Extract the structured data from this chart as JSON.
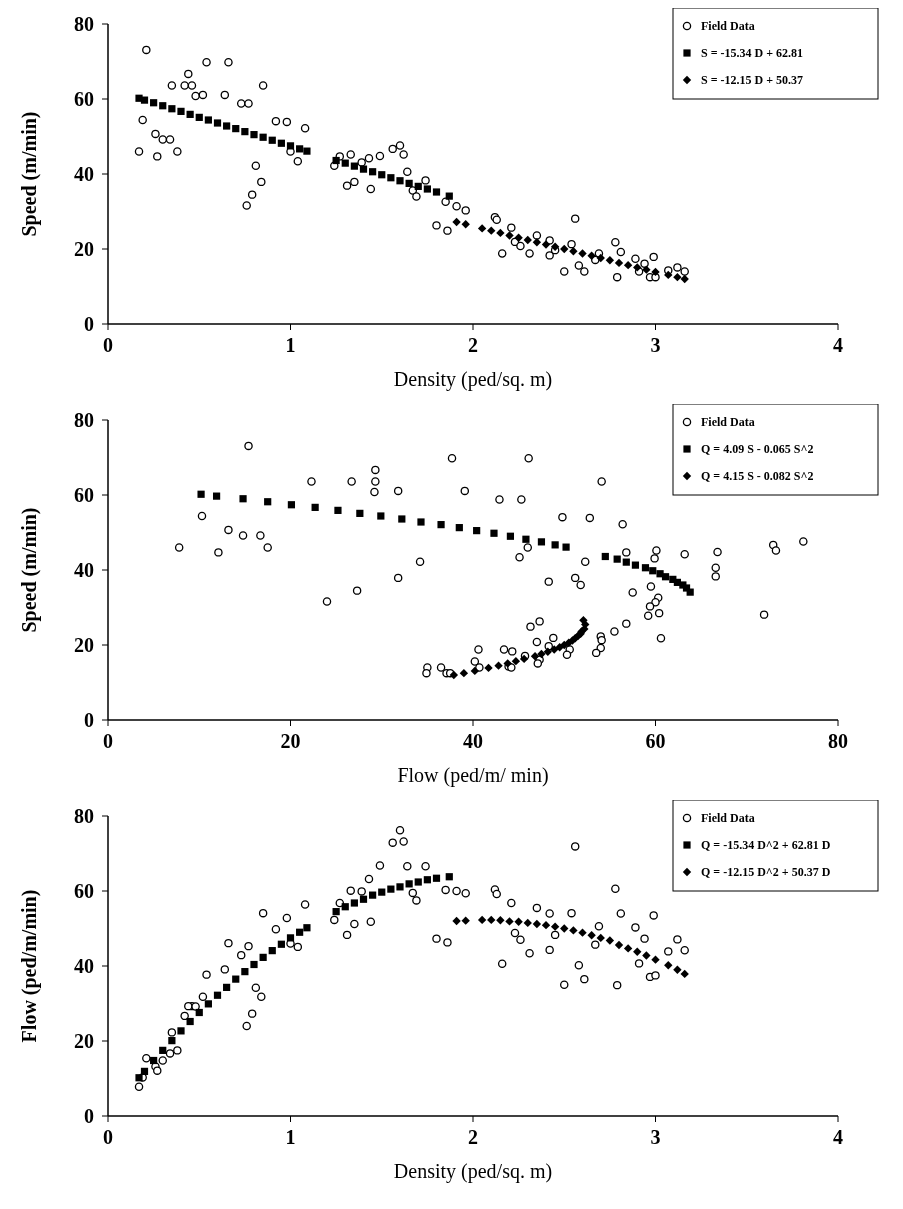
{
  "chart_data": [
    {
      "type": "scatter",
      "xlabel": "Density (ped/sq. m)",
      "ylabel": "Speed (m/min)",
      "xlim": [
        0,
        4
      ],
      "xticks": [
        0,
        1,
        2,
        3,
        4
      ],
      "ylim": [
        0,
        80
      ],
      "yticks": [
        0,
        20,
        40,
        60,
        80
      ],
      "grid": false,
      "legend": "top right",
      "series": [
        {
          "name": "Field Data",
          "color": "#000000",
          "marker": "circle",
          "x": [
            0.21,
            0.17,
            0.19,
            0.26,
            0.27,
            0.3,
            0.34,
            0.38,
            0.35,
            0.42,
            0.46,
            0.44,
            0.48,
            0.52,
            0.54,
            0.66,
            0.64,
            0.73,
            0.77,
            0.76,
            0.79,
            0.81,
            0.84,
            0.85,
            0.92,
            0.98,
            1.0,
            1.04,
            1.08,
            1.24,
            1.27,
            1.33,
            1.31,
            1.35,
            1.39,
            1.43,
            1.44,
            1.49,
            1.56,
            1.6,
            1.62,
            1.64,
            1.67,
            1.69,
            1.74,
            1.8,
            1.85,
            1.86,
            1.91,
            1.96,
            2.12,
            2.13,
            2.21,
            2.16,
            2.23,
            2.26,
            2.31,
            2.35,
            2.42,
            2.42,
            2.45,
            2.54,
            2.5,
            2.56,
            2.58,
            2.61,
            2.67,
            2.69,
            2.78,
            2.81,
            2.79,
            2.89,
            2.91,
            2.94,
            2.97,
            3.0,
            2.99,
            3.07,
            3.12,
            3.16
          ],
          "values": [
            73.1,
            46,
            54.4,
            50.7,
            44.7,
            49.2,
            49.2,
            46,
            63.6,
            63.6,
            63.6,
            66.7,
            60.8,
            61.1,
            69.8,
            69.8,
            61.1,
            58.8,
            58.8,
            31.6,
            34.5,
            42.2,
            37.9,
            63.6,
            54.1,
            53.9,
            46,
            43.4,
            52.2,
            42.2,
            44.7,
            45.2,
            36.9,
            37.9,
            43.1,
            44.2,
            36.0,
            44.8,
            46.7,
            47.6,
            45.2,
            40.6,
            35.6,
            34.0,
            38.3,
            26.3,
            32.6,
            24.9,
            31.4,
            30.3,
            28.5,
            27.8,
            25.7,
            18.8,
            21.9,
            20.8,
            18.8,
            23.6,
            22.3,
            18.3,
            19.7,
            21.3,
            14.0,
            28.1,
            15.6,
            14.0,
            17.1,
            18.8,
            21.8,
            19.2,
            12.5,
            17.4,
            14.0,
            16.1,
            12.5,
            12.5,
            17.9,
            14.3,
            15.1,
            14.0
          ]
        },
        {
          "name": "S = -15.34 D + 62.81",
          "color": "#000000",
          "marker": "square",
          "x": [
            0.17,
            0.2,
            0.25,
            0.3,
            0.35,
            0.4,
            0.45,
            0.5,
            0.55,
            0.6,
            0.65,
            0.7,
            0.75,
            0.8,
            0.85,
            0.9,
            0.95,
            1.0,
            1.05,
            1.09,
            1.25,
            1.3,
            1.35,
            1.4,
            1.45,
            1.5,
            1.55,
            1.6,
            1.65,
            1.7,
            1.75,
            1.8,
            1.87
          ],
          "values": [
            60.2,
            59.7,
            59.0,
            58.2,
            57.4,
            56.7,
            55.9,
            55.1,
            54.4,
            53.6,
            52.8,
            52.1,
            51.3,
            50.5,
            49.8,
            49.0,
            48.2,
            47.5,
            46.7,
            46.1,
            43.6,
            42.9,
            42.1,
            41.3,
            40.6,
            39.8,
            39.0,
            38.2,
            37.5,
            36.7,
            36.0,
            35.2,
            34.1
          ]
        },
        {
          "name": "S = -12.15 D + 50.37",
          "color": "#000000",
          "marker": "diamond",
          "x": [
            1.91,
            1.96,
            2.05,
            2.1,
            2.15,
            2.2,
            2.25,
            2.3,
            2.35,
            2.4,
            2.45,
            2.5,
            2.55,
            2.6,
            2.65,
            2.7,
            2.75,
            2.8,
            2.85,
            2.9,
            2.95,
            3.0,
            3.07,
            3.12,
            3.16
          ],
          "values": [
            27.2,
            26.6,
            25.5,
            24.9,
            24.3,
            23.6,
            23.0,
            22.4,
            21.8,
            21.2,
            20.6,
            20.0,
            19.4,
            18.8,
            18.2,
            17.6,
            17.0,
            16.3,
            15.7,
            15.1,
            14.5,
            13.9,
            13.1,
            12.5,
            12.0
          ]
        }
      ]
    },
    {
      "type": "scatter",
      "xlabel": "Flow (ped/m/ min)",
      "ylabel": "Speed (m/min)",
      "xlim": [
        0,
        80
      ],
      "xticks": [
        0,
        20,
        40,
        60,
        80
      ],
      "ylim": [
        0,
        80
      ],
      "yticks": [
        0,
        20,
        40,
        60,
        80
      ],
      "grid": false,
      "legend": "top right",
      "series": [
        {
          "name": "Field Data",
          "color": "#000000",
          "marker": "circle",
          "x": [
            15.4,
            7.8,
            10.3,
            13.2,
            12.1,
            14.8,
            16.7,
            17.5,
            22.3,
            26.7,
            29.3,
            29.3,
            29.2,
            31.8,
            37.7,
            46.1,
            39.1,
            42.9,
            45.3,
            24.0,
            27.3,
            34.2,
            31.8,
            54.1,
            49.8,
            52.8,
            46.0,
            45.1,
            56.4,
            52.3,
            56.8,
            60.1,
            48.3,
            51.2,
            59.9,
            63.2,
            51.8,
            66.8,
            72.9,
            76.2,
            73.2,
            66.6,
            59.5,
            57.5,
            66.6,
            47.3,
            60.3,
            46.3,
            60.0,
            59.4,
            60.4,
            59.2,
            56.8,
            40.6,
            48.8,
            47.0,
            43.4,
            55.5,
            54.0,
            44.3,
            48.3,
            54.1,
            35.0,
            71.9,
            40.2,
            36.5,
            45.7,
            50.6,
            60.6,
            54.0,
            34.9,
            50.3,
            40.7,
            47.3,
            37.1,
            37.5,
            53.5,
            43.9,
            47.1,
            44.2
          ],
          "values": [
            73.1,
            46,
            54.4,
            50.7,
            44.7,
            49.2,
            49.2,
            46,
            63.6,
            63.6,
            63.6,
            66.7,
            60.8,
            61.1,
            69.8,
            69.8,
            61.1,
            58.8,
            58.8,
            31.6,
            34.5,
            42.2,
            37.9,
            63.6,
            54.1,
            53.9,
            46,
            43.4,
            52.2,
            42.2,
            44.7,
            45.2,
            36.9,
            37.9,
            43.1,
            44.2,
            36.0,
            44.8,
            46.7,
            47.6,
            45.2,
            40.6,
            35.6,
            34.0,
            38.3,
            26.3,
            32.6,
            24.9,
            31.4,
            30.3,
            28.5,
            27.8,
            25.7,
            18.8,
            21.9,
            20.8,
            18.8,
            23.6,
            22.3,
            18.3,
            19.7,
            21.3,
            14.0,
            28.1,
            15.6,
            14.0,
            17.1,
            18.8,
            21.8,
            19.2,
            12.5,
            17.4,
            14.0,
            16.1,
            12.5,
            12.5,
            17.9,
            14.3,
            15.1,
            14.0
          ]
        },
        {
          "name": "Q = 4.09 S - 0.065 S^2",
          "color": "#000000",
          "marker": "square",
          "x": [
            10.2,
            11.9,
            14.8,
            17.5,
            20.1,
            22.7,
            25.2,
            27.6,
            29.9,
            32.2,
            34.3,
            36.5,
            38.5,
            40.4,
            42.3,
            44.1,
            45.8,
            47.5,
            49.0,
            50.2,
            54.5,
            55.8,
            56.8,
            57.8,
            58.9,
            59.7,
            60.5,
            61.1,
            61.9,
            62.4,
            63.0,
            63.4,
            63.8
          ],
          "values": [
            60.2,
            59.7,
            59.0,
            58.2,
            57.4,
            56.7,
            55.9,
            55.1,
            54.4,
            53.6,
            52.8,
            52.1,
            51.3,
            50.5,
            49.8,
            49.0,
            48.2,
            47.5,
            46.7,
            46.1,
            43.6,
            42.9,
            42.1,
            41.3,
            40.6,
            39.8,
            39.0,
            38.2,
            37.5,
            36.7,
            36.0,
            35.2,
            34.1
          ]
        },
        {
          "name": "Q = 4.15 S - 0.082 S^2",
          "color": "#000000",
          "marker": "diamond",
          "x": [
            52.1,
            52.3,
            52.2,
            51.9,
            51.8,
            51.5,
            51.2,
            50.9,
            50.5,
            50.0,
            49.5,
            48.9,
            48.2,
            47.5,
            46.8,
            45.6,
            44.7,
            43.8,
            42.8,
            41.7,
            40.2,
            39.0,
            37.9
          ],
          "values": [
            26.6,
            25.5,
            24.3,
            23.6,
            23.0,
            22.4,
            21.8,
            21.2,
            20.6,
            20.0,
            19.4,
            18.8,
            18.2,
            17.6,
            17.0,
            16.3,
            15.7,
            15.1,
            14.5,
            13.9,
            13.1,
            12.5,
            12.0
          ]
        }
      ]
    },
    {
      "type": "scatter",
      "xlabel": "Density (ped/sq. m)",
      "ylabel": "Flow (ped/m/min)",
      "xlim": [
        0,
        4
      ],
      "xticks": [
        0,
        1,
        2,
        3,
        4
      ],
      "ylim": [
        0,
        80
      ],
      "yticks": [
        0,
        20,
        40,
        60,
        80
      ],
      "grid": false,
      "legend": "top right",
      "series": [
        {
          "name": "Field Data",
          "color": "#000000",
          "marker": "circle",
          "x": [
            0.21,
            0.17,
            0.19,
            0.26,
            0.27,
            0.3,
            0.34,
            0.38,
            0.35,
            0.42,
            0.46,
            0.44,
            0.48,
            0.52,
            0.54,
            0.66,
            0.64,
            0.73,
            0.77,
            0.76,
            0.79,
            0.81,
            0.84,
            0.85,
            0.92,
            0.98,
            1.0,
            1.04,
            1.08,
            1.24,
            1.27,
            1.33,
            1.31,
            1.35,
            1.39,
            1.43,
            1.44,
            1.49,
            1.56,
            1.6,
            1.62,
            1.64,
            1.67,
            1.69,
            1.74,
            1.8,
            1.85,
            1.86,
            1.91,
            1.96,
            2.12,
            2.13,
            2.21,
            2.16,
            2.23,
            2.26,
            2.31,
            2.35,
            2.42,
            2.42,
            2.45,
            2.54,
            2.5,
            2.56,
            2.58,
            2.61,
            2.67,
            2.69,
            2.78,
            2.81,
            2.79,
            2.89,
            2.91,
            2.94,
            2.97,
            3.0,
            2.99,
            3.07,
            3.12,
            3.16
          ],
          "values": [
            15.4,
            7.8,
            10.3,
            13.2,
            12.1,
            14.8,
            16.7,
            17.5,
            22.3,
            26.7,
            29.3,
            29.3,
            29.2,
            31.8,
            37.7,
            46.1,
            39.1,
            42.9,
            45.3,
            24.0,
            27.3,
            34.2,
            31.8,
            54.1,
            49.8,
            52.8,
            46.0,
            45.1,
            56.4,
            52.3,
            56.8,
            60.1,
            48.3,
            51.2,
            59.9,
            63.2,
            51.8,
            66.8,
            72.9,
            76.2,
            73.2,
            66.6,
            59.5,
            57.5,
            66.6,
            47.3,
            60.3,
            46.3,
            60.0,
            59.4,
            60.4,
            59.2,
            56.8,
            40.6,
            48.8,
            47.0,
            43.4,
            55.5,
            54.0,
            44.3,
            48.3,
            54.1,
            35.0,
            71.9,
            40.2,
            36.5,
            45.7,
            50.6,
            60.6,
            54.0,
            34.9,
            50.3,
            40.7,
            47.3,
            37.1,
            37.5,
            53.5,
            43.9,
            47.1,
            44.2
          ]
        },
        {
          "name": "Q = -15.34 D^2 + 62.81 D",
          "color": "#000000",
          "marker": "square",
          "x": [
            0.17,
            0.2,
            0.25,
            0.3,
            0.35,
            0.4,
            0.45,
            0.5,
            0.55,
            0.6,
            0.65,
            0.7,
            0.75,
            0.8,
            0.85,
            0.9,
            0.95,
            1.0,
            1.05,
            1.09,
            1.25,
            1.3,
            1.35,
            1.4,
            1.45,
            1.5,
            1.55,
            1.6,
            1.65,
            1.7,
            1.75,
            1.8,
            1.87
          ],
          "values": [
            10.2,
            11.9,
            14.8,
            17.5,
            20.1,
            22.7,
            25.2,
            27.6,
            29.9,
            32.2,
            34.3,
            36.5,
            38.5,
            40.4,
            42.3,
            44.1,
            45.8,
            47.5,
            49.0,
            50.2,
            54.5,
            55.8,
            56.8,
            57.8,
            58.9,
            59.7,
            60.5,
            61.1,
            61.9,
            62.4,
            63.0,
            63.4,
            63.8
          ]
        },
        {
          "name": "Q = -12.15 D^2 + 50.37 D",
          "color": "#000000",
          "marker": "diamond",
          "x": [
            1.91,
            1.96,
            2.05,
            2.1,
            2.15,
            2.2,
            2.25,
            2.3,
            2.35,
            2.4,
            2.45,
            2.5,
            2.55,
            2.6,
            2.65,
            2.7,
            2.75,
            2.8,
            2.85,
            2.9,
            2.95,
            3.0,
            3.07,
            3.12,
            3.16
          ],
          "values": [
            52.0,
            52.1,
            52.3,
            52.3,
            52.2,
            51.9,
            51.8,
            51.5,
            51.2,
            50.9,
            50.5,
            50.0,
            49.5,
            48.9,
            48.2,
            47.5,
            46.8,
            45.6,
            44.7,
            43.8,
            42.8,
            41.7,
            40.2,
            39.0,
            37.9
          ]
        }
      ]
    }
  ]
}
